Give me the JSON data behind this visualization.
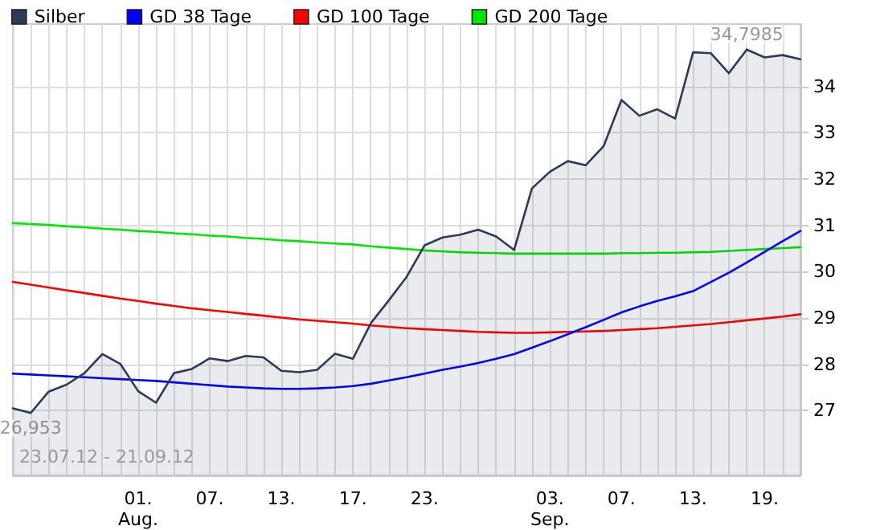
{
  "chart_data": {
    "type": "line",
    "categories": [
      null,
      null,
      null,
      null,
      null,
      null,
      null,
      "01.\nAug.",
      null,
      null,
      null,
      "07.",
      null,
      null,
      null,
      "13.",
      null,
      null,
      null,
      "17.",
      null,
      null,
      null,
      "23.",
      null,
      null,
      null,
      null,
      null,
      null,
      "03.\nSep.",
      null,
      null,
      null,
      "07.",
      null,
      null,
      null,
      "13.",
      null,
      null,
      null,
      "19.",
      null,
      null
    ],
    "series": [
      {
        "name": "Silber",
        "type": "area",
        "color": "#2e3a56",
        "values": [
          27.05,
          26.95,
          27.41,
          27.56,
          27.81,
          28.22,
          28.01,
          27.42,
          27.17,
          27.81,
          27.9,
          28.13,
          28.07,
          28.18,
          28.15,
          27.86,
          27.83,
          27.88,
          28.23,
          28.12,
          28.89,
          29.38,
          29.89,
          30.57,
          30.74,
          30.8,
          30.91,
          30.76,
          30.47,
          31.8,
          32.16,
          32.39,
          32.3,
          32.71,
          33.71,
          33.37,
          33.51,
          33.31,
          34.74,
          34.72,
          34.29,
          34.8,
          34.63,
          34.68,
          34.59
        ]
      },
      {
        "name": "GD 38 Tage",
        "color": "#0000ff",
        "values": [
          27.8,
          27.78,
          27.76,
          27.74,
          27.72,
          27.7,
          27.68,
          27.66,
          27.64,
          27.61,
          27.58,
          27.55,
          27.52,
          27.5,
          27.48,
          27.47,
          27.47,
          27.48,
          27.5,
          27.53,
          27.58,
          27.65,
          27.72,
          27.8,
          27.88,
          27.95,
          28.03,
          28.12,
          28.22,
          28.36,
          28.5,
          28.65,
          28.8,
          28.96,
          29.12,
          29.25,
          29.37,
          29.47,
          29.58,
          29.78,
          29.98,
          30.2,
          30.43,
          30.66,
          30.88
        ]
      },
      {
        "name": "GD 100 Tage",
        "color": "#ff0000",
        "values": [
          29.78,
          29.72,
          29.66,
          29.6,
          29.54,
          29.48,
          29.42,
          29.37,
          29.31,
          29.26,
          29.21,
          29.17,
          29.13,
          29.09,
          29.05,
          29.01,
          28.97,
          28.94,
          28.91,
          28.88,
          28.84,
          28.81,
          28.78,
          28.76,
          28.74,
          28.72,
          28.7,
          28.69,
          28.68,
          28.68,
          28.69,
          28.7,
          28.71,
          28.72,
          28.74,
          28.76,
          28.78,
          28.81,
          28.84,
          28.87,
          28.91,
          28.95,
          28.99,
          29.03,
          29.08
        ]
      },
      {
        "name": "GD 200 Tage",
        "color": "#00e600",
        "values": [
          31.05,
          31.03,
          31.01,
          30.98,
          30.96,
          30.93,
          30.91,
          30.88,
          30.86,
          30.83,
          30.81,
          30.78,
          30.76,
          30.73,
          30.71,
          30.68,
          30.66,
          30.63,
          30.61,
          30.59,
          30.55,
          30.52,
          30.49,
          30.46,
          30.44,
          30.42,
          30.41,
          30.4,
          30.39,
          30.39,
          30.39,
          30.39,
          30.39,
          30.39,
          30.4,
          30.4,
          30.41,
          30.41,
          30.42,
          30.43,
          30.45,
          30.47,
          30.49,
          30.51,
          30.53
        ]
      }
    ],
    "ylim": [
      25.6,
      35.35
    ],
    "yticks": [
      27,
      28,
      29,
      30,
      31,
      32,
      33,
      34
    ],
    "annotations": [
      "23.07.12 - 21.09.12",
      "26,953",
      "34,7985"
    ],
    "grid": true,
    "legend": "top left"
  }
}
